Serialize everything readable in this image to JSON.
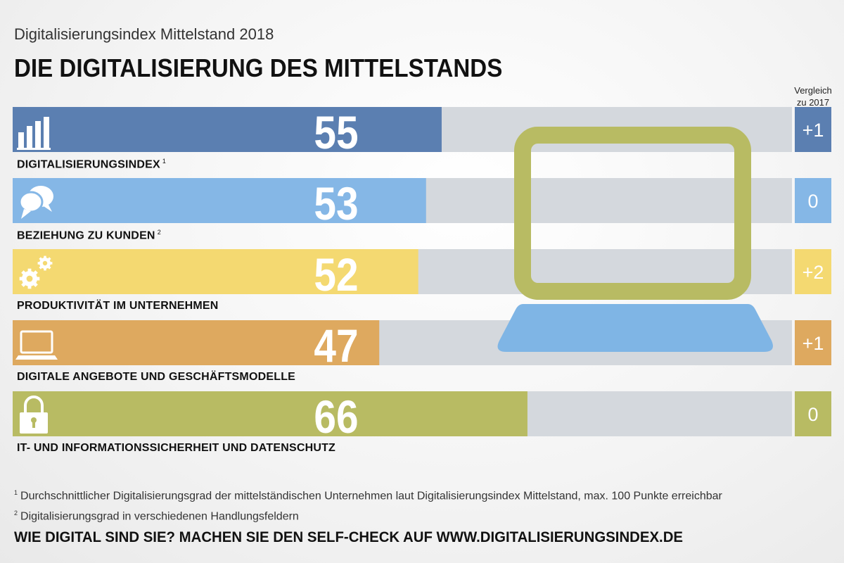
{
  "header": {
    "subtitle": "Digitalisierungsindex Mittelstand 2018",
    "title": "DIE DIGITALISIERUNG DES MITTELSTANDS"
  },
  "comparison_header": {
    "line1": "Vergleich",
    "line2": "zu 2017"
  },
  "chart_data": {
    "type": "bar",
    "orientation": "horizontal",
    "ylim": [
      0,
      100
    ],
    "categories": [
      "DIGITALISIERUNGSINDEX",
      "BEZIEHUNG ZU KUNDEN",
      "PRODUKTIVITÄT IM UNTERNEHMEN",
      "DIGITALE ANGEBOTE UND GESCHÄFTSMODELLE",
      "IT- UND INFORMATIONSSICHERHEIT UND DATENSCHUTZ"
    ],
    "footnote_refs": [
      "1",
      "2",
      "",
      "",
      ""
    ],
    "values": [
      55,
      53,
      52,
      47,
      66
    ],
    "value_labels": [
      "55",
      "53",
      "52",
      "47",
      "66"
    ],
    "comparison_2017": [
      "+1",
      "0",
      "+2",
      "+1",
      "0"
    ],
    "icons": [
      "bar-chart-icon",
      "speech-bubbles-icon",
      "gears-icon",
      "laptop-icon",
      "padlock-icon"
    ],
    "colors": [
      "#5b7fb1",
      "#85b7e6",
      "#f4d971",
      "#dea95f",
      "#b8bb63"
    ],
    "track_color": "#d4d8dd"
  },
  "footnotes": [
    {
      "mark": "1",
      "text": "Durchschnittlicher Digitalisierungsgrad der mittelständischen Unternehmen laut Digitalisierungsindex Mittelstand, max. 100 Punkte erreichbar"
    },
    {
      "mark": "2",
      "text": "Digitalisierungsgrad in verschiedenen Handlungsfeldern"
    }
  ],
  "cta": "WIE DIGITAL SIND SIE? MACHEN SIE DEN SELF-CHECK AUF WWW.DIGITALISIERUNGSINDEX.DE"
}
